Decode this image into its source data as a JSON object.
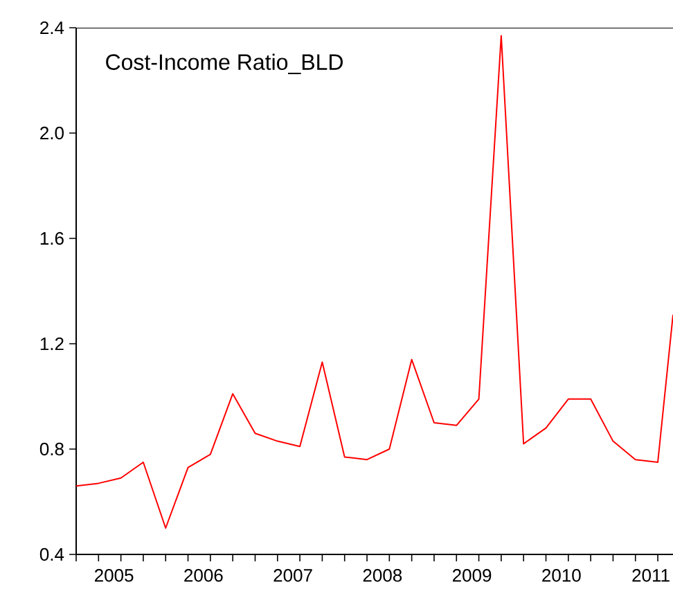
{
  "chart_data": {
    "type": "line",
    "title": "Cost-Income Ratio_BLD",
    "x": [
      2005.0,
      2005.25,
      2005.5,
      2005.75,
      2006.0,
      2006.25,
      2006.5,
      2006.75,
      2007.0,
      2007.25,
      2007.5,
      2007.75,
      2008.0,
      2008.25,
      2008.5,
      2008.75,
      2009.0,
      2009.25,
      2009.5,
      2009.75,
      2010.0,
      2010.25,
      2010.5,
      2010.75,
      2011.0,
      2011.25,
      2011.5,
      2011.67
    ],
    "series": [
      {
        "color": "#ff0000",
        "values": [
          0.66,
          0.67,
          0.69,
          0.75,
          0.5,
          0.73,
          0.78,
          1.01,
          0.86,
          0.83,
          0.81,
          1.13,
          0.77,
          0.76,
          0.8,
          1.14,
          0.9,
          0.89,
          0.99,
          2.37,
          0.82,
          0.88,
          0.99,
          0.99,
          0.83,
          0.76,
          0.75,
          1.31
        ]
      }
    ],
    "xlim": [
      2005.0,
      2011.67
    ],
    "xticks": [
      {
        "value": 2005.0,
        "label": null
      },
      {
        "value": 2005.25,
        "label": null
      },
      {
        "value": 2005.5,
        "label": "2005"
      },
      {
        "value": 2005.75,
        "label": null
      },
      {
        "value": 2006.0,
        "label": null
      },
      {
        "value": 2006.25,
        "label": null
      },
      {
        "value": 2006.5,
        "label": "2006"
      },
      {
        "value": 2006.75,
        "label": null
      },
      {
        "value": 2007.0,
        "label": null
      },
      {
        "value": 2007.25,
        "label": null
      },
      {
        "value": 2007.5,
        "label": "2007"
      },
      {
        "value": 2007.75,
        "label": null
      },
      {
        "value": 2008.0,
        "label": null
      },
      {
        "value": 2008.25,
        "label": null
      },
      {
        "value": 2008.5,
        "label": "2008"
      },
      {
        "value": 2008.75,
        "label": null
      },
      {
        "value": 2009.0,
        "label": null
      },
      {
        "value": 2009.25,
        "label": null
      },
      {
        "value": 2009.5,
        "label": "2009"
      },
      {
        "value": 2009.75,
        "label": null
      },
      {
        "value": 2010.0,
        "label": null
      },
      {
        "value": 2010.25,
        "label": null
      },
      {
        "value": 2010.5,
        "label": "2010"
      },
      {
        "value": 2010.75,
        "label": null
      },
      {
        "value": 2011.0,
        "label": null
      },
      {
        "value": 2011.25,
        "label": null
      },
      {
        "value": 2011.5,
        "label": "2011"
      }
    ],
    "ylim": [
      0.4,
      2.4
    ],
    "yticks": [
      {
        "value": 0.4,
        "label": "0.4"
      },
      {
        "value": 0.8,
        "label": "0.8"
      },
      {
        "value": 1.2,
        "label": "1.2"
      },
      {
        "value": 1.6,
        "label": "1.6"
      },
      {
        "value": 2.0,
        "label": "2.0"
      },
      {
        "value": 2.4,
        "label": "2.4"
      }
    ],
    "grid": false,
    "marker": "none",
    "line_style": "solid"
  }
}
